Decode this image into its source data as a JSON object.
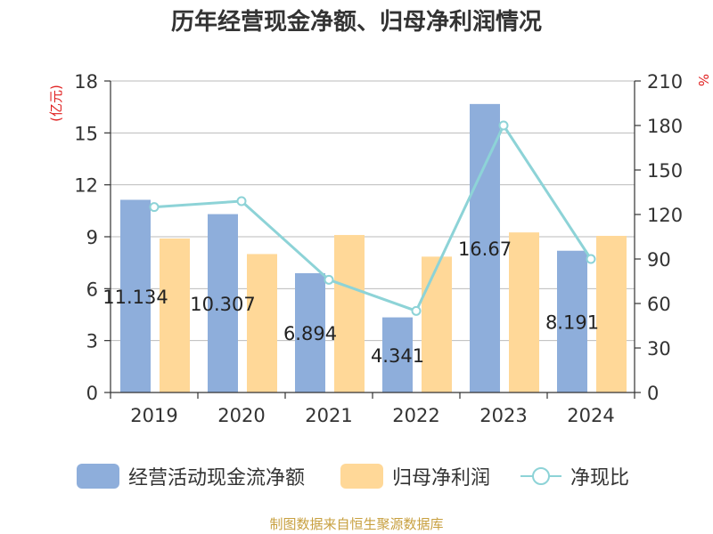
{
  "title": "历年经营现金净额、归母净利润情况",
  "source": "制图数据来自恒生聚源数据库",
  "colors": {
    "operating_cash": "#8eaedb",
    "net_profit": "#ffd898",
    "ratio_line": "#8dd3d7",
    "axis": "#333333",
    "grid": "#bbbbbb",
    "unit": "#e02020"
  },
  "chart_data": {
    "type": "bar",
    "categories": [
      "2019",
      "2020",
      "2021",
      "2022",
      "2023",
      "2024"
    ],
    "series": [
      {
        "name": "经营活动现金流净额",
        "axis": "left",
        "values": [
          11.134,
          10.307,
          6.894,
          4.341,
          16.67,
          8.191
        ],
        "labels": [
          "11.134",
          "10.307",
          "6.894",
          "4.341",
          "16.67",
          "8.191"
        ]
      },
      {
        "name": "归母净利润",
        "axis": "left",
        "values": [
          8.9,
          8.0,
          9.1,
          7.85,
          9.25,
          9.05
        ]
      },
      {
        "name": "净现比",
        "type": "line",
        "axis": "right",
        "values": [
          125,
          129,
          76,
          55,
          180,
          90
        ]
      }
    ],
    "y_left": {
      "label": "(亿元)",
      "min": 0,
      "max": 18,
      "ticks": [
        0,
        3,
        6,
        9,
        12,
        15,
        18
      ]
    },
    "y_right": {
      "label": "%",
      "min": 0,
      "max": 210,
      "ticks": [
        0,
        30,
        60,
        90,
        120,
        150,
        180,
        210
      ]
    },
    "grid": true,
    "legend": "bottom"
  },
  "legend": {
    "items": [
      {
        "label": "经营活动现金流净额"
      },
      {
        "label": "归母净利润"
      },
      {
        "label": "净现比"
      }
    ]
  }
}
